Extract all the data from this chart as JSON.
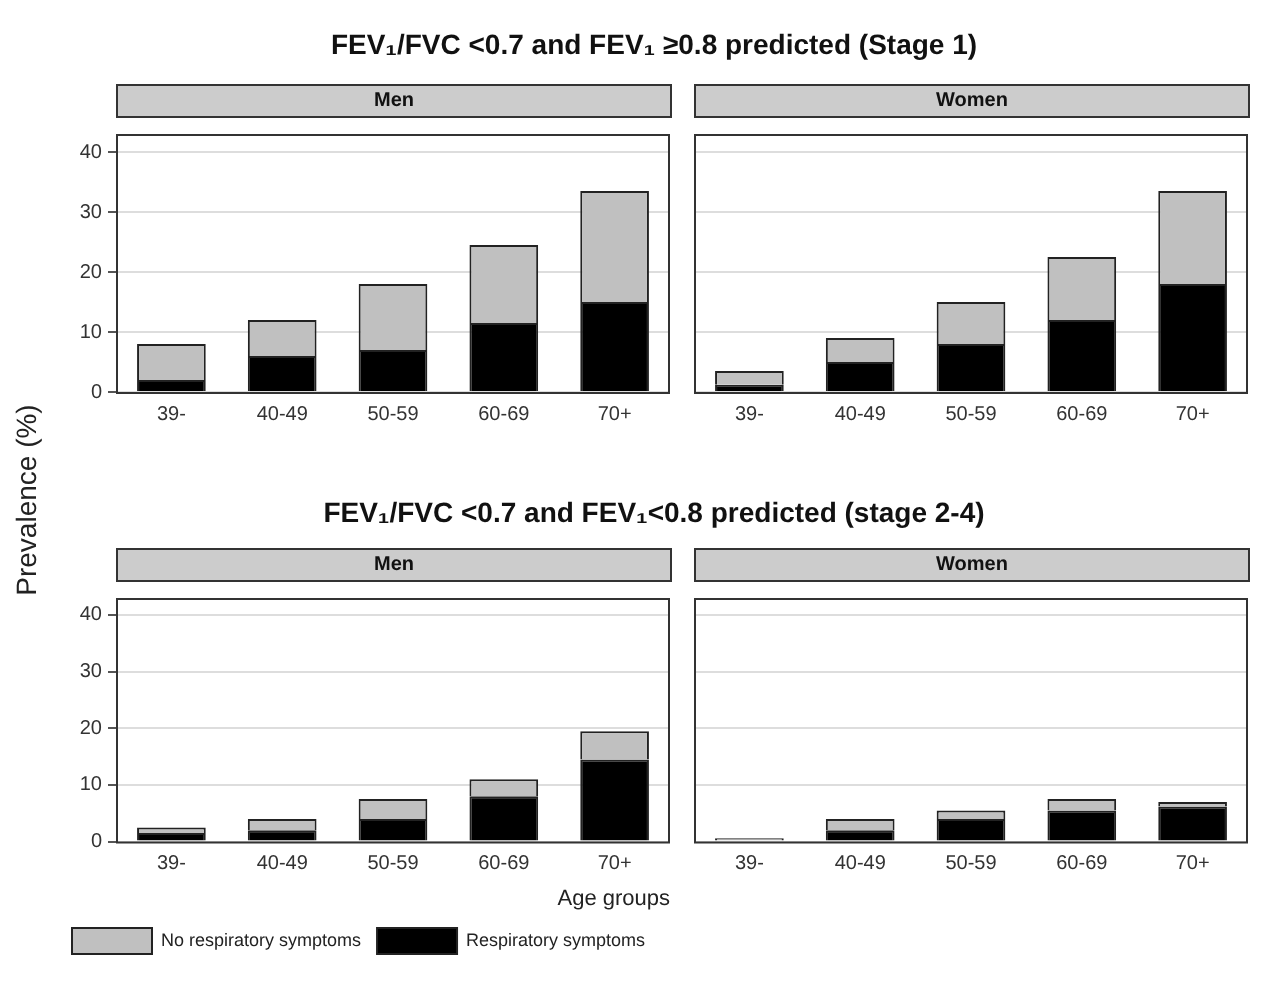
{
  "chart_data": [
    {
      "type": "bar",
      "title": "FEV₁/FVC <0.7 and FEV₁ ≥0.8 predicted (Stage 1)",
      "subtitle": "Men",
      "ylabel": "Prevalence (%)",
      "categories": [
        "39-",
        "40-49",
        "50-59",
        "60-69",
        "70+"
      ],
      "stacked": true,
      "ylim": [
        0,
        43
      ],
      "yticks": [
        0,
        10,
        20,
        30,
        40
      ],
      "grid": "y",
      "series": [
        {
          "color": "#000000",
          "values": [
            2,
            6,
            7,
            11.5,
            15
          ]
        },
        {
          "color": "#c0c0c0",
          "values": [
            6,
            6,
            11,
            13,
            18.5
          ]
        }
      ]
    },
    {
      "type": "bar",
      "subtitle": "Women",
      "categories": [
        "39-",
        "40-49",
        "50-59",
        "60-69",
        "70+"
      ],
      "stacked": true,
      "ylim": [
        0,
        43
      ],
      "yticks": [
        0,
        10,
        20,
        30,
        40
      ],
      "grid": "y",
      "tick_labels": "x",
      "series": [
        {
          "color": "#000000",
          "values": [
            1.2,
            5,
            8,
            12,
            18
          ]
        },
        {
          "color": "#c0c0c0",
          "values": [
            2.3,
            4,
            7,
            10.5,
            15.5
          ]
        }
      ]
    },
    {
      "type": "bar",
      "title": "FEV₁/FVC <0.7 and FEV₁<0.8 predicted (stage 2-4)",
      "subtitle": "Men",
      "xlabel": "Age groups",
      "categories": [
        "39-",
        "40-49",
        "50-59",
        "60-69",
        "70+"
      ],
      "stacked": true,
      "ylim": [
        0,
        43
      ],
      "yticks": [
        0,
        10,
        20,
        30,
        40
      ],
      "grid": "y",
      "legend": "bottom",
      "series": [
        {
          "name": "Respiratory symptoms",
          "color": "#000000",
          "values": [
            1.5,
            2,
            4,
            8,
            14.5
          ]
        },
        {
          "name": "No respiratory symptoms",
          "color": "#c0c0c0",
          "values": [
            1,
            2,
            3.5,
            3,
            5
          ]
        }
      ]
    },
    {
      "type": "bar",
      "subtitle": "Women",
      "categories": [
        "39-",
        "40-49",
        "50-59",
        "60-69",
        "70+"
      ],
      "stacked": true,
      "ylim": [
        0,
        43
      ],
      "yticks": [
        0,
        10,
        20,
        30,
        40
      ],
      "grid": "y",
      "tick_labels": "x",
      "series": [
        {
          "color": "#000000",
          "values": [
            0,
            2,
            4,
            5.5,
            6.2
          ]
        },
        {
          "color": "#c0c0c0",
          "values": [
            0.6,
            2,
            1.5,
            2,
            0.8
          ]
        }
      ]
    }
  ]
}
